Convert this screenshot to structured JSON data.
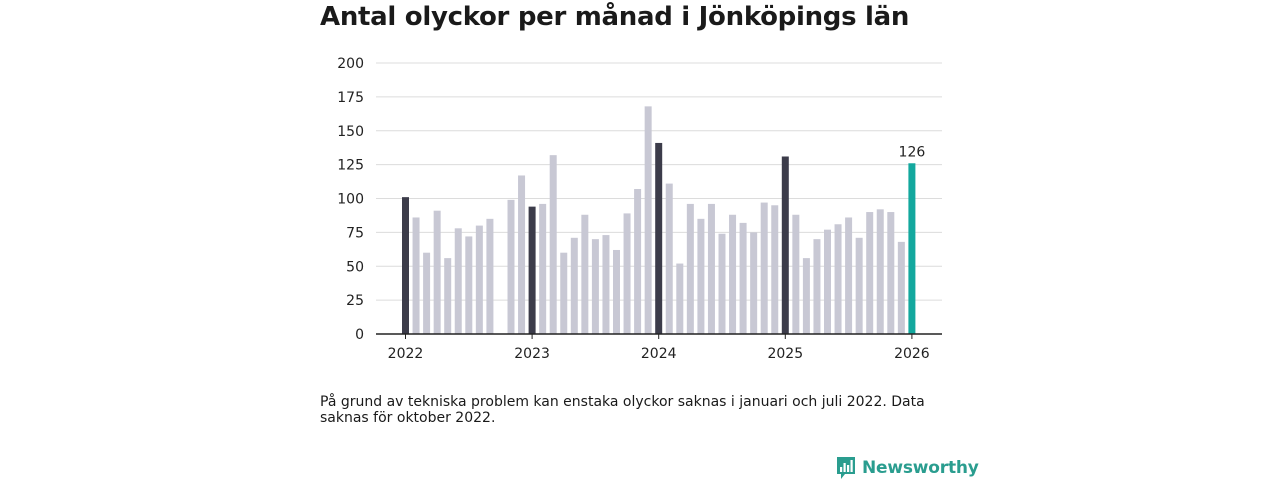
{
  "title": "Antal olyckor per månad i Jönköpings län",
  "footnote": "På grund av tekniska problem kan enstaka olyckor saknas i januari och juli 2022. Data saknas för oktober 2022.",
  "brand": "Newsworthy",
  "colors": {
    "bar": "#c8c8d4",
    "january": "#3c3c4a",
    "highlight": "#13a89e",
    "grid": "#dcdcdc",
    "axis": "#222222",
    "brand": "#2a9d8f"
  },
  "chart_data": {
    "type": "bar",
    "title": "Antal olyckor per månad i Jönköpings län",
    "xlabel": "",
    "ylabel": "",
    "ylim": [
      0,
      200
    ],
    "yticks": [
      "0",
      "25",
      "50",
      "75",
      "100",
      "125",
      "150",
      "175",
      "200"
    ],
    "xticks": [
      {
        "label": "2022",
        "index": 0
      },
      {
        "label": "2023",
        "index": 12
      },
      {
        "label": "2024",
        "index": 24
      },
      {
        "label": "2025",
        "index": 36
      },
      {
        "label": "2026",
        "index": 48
      }
    ],
    "values": [
      101,
      86,
      60,
      91,
      56,
      78,
      72,
      80,
      85,
      null,
      99,
      117,
      94,
      96,
      132,
      60,
      71,
      88,
      70,
      73,
      62,
      89,
      107,
      168,
      141,
      111,
      52,
      96,
      85,
      96,
      74,
      88,
      82,
      75,
      97,
      95,
      131,
      88,
      56,
      70,
      77,
      81,
      86,
      71,
      90,
      92,
      90,
      68,
      126
    ],
    "highlight_index": 48,
    "highlight_label": "126"
  }
}
